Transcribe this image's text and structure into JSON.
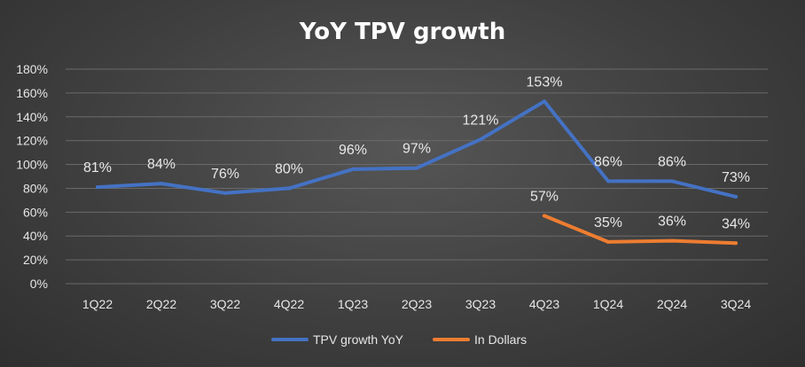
{
  "chart_data": {
    "type": "line",
    "title": "YoY TPV growth",
    "xlabel": "",
    "ylabel": "",
    "categories": [
      "1Q22",
      "2Q22",
      "3Q22",
      "4Q22",
      "1Q23",
      "2Q23",
      "3Q23",
      "4Q23",
      "1Q24",
      "2Q24",
      "3Q24"
    ],
    "ylim": [
      0,
      180
    ],
    "yticks": [
      0,
      20,
      40,
      60,
      80,
      100,
      120,
      140,
      160,
      180
    ],
    "ytick_labels": [
      "0%",
      "20%",
      "40%",
      "60%",
      "80%",
      "100%",
      "120%",
      "140%",
      "160%",
      "180%"
    ],
    "grid": true,
    "legend_position": "bottom",
    "series": [
      {
        "name": "TPV growth YoY",
        "color": "#4472C4",
        "values": [
          81,
          84,
          76,
          80,
          96,
          97,
          121,
          153,
          86,
          86,
          73
        ],
        "labels": [
          "81%",
          "84%",
          "76%",
          "80%",
          "96%",
          "97%",
          "121%",
          "153%",
          "86%",
          "86%",
          "73%"
        ]
      },
      {
        "name": "In Dollars",
        "color": "#ED7D31",
        "values": [
          null,
          null,
          null,
          null,
          null,
          null,
          null,
          57,
          35,
          36,
          34
        ],
        "labels": [
          null,
          null,
          null,
          null,
          null,
          null,
          null,
          "57%",
          "35%",
          "36%",
          "34%"
        ]
      }
    ]
  }
}
